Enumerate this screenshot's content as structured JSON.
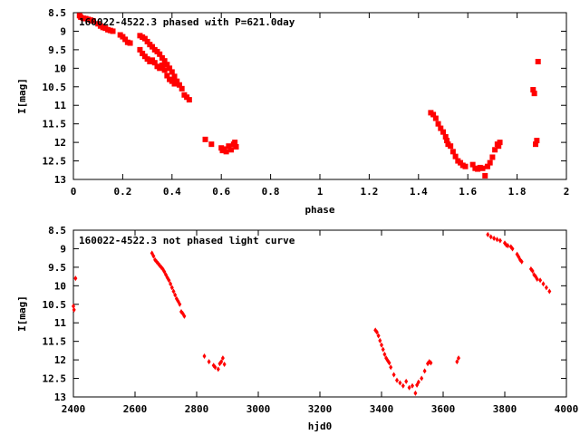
{
  "chart_data": [
    {
      "type": "scatter",
      "title": "160022-4522.3 phased with P=621.0day",
      "xlabel": "phase",
      "ylabel": "I[mag]",
      "xlim": [
        0,
        2
      ],
      "ylim": [
        13,
        8.5
      ],
      "y_reversed": true,
      "xticks": [
        0,
        0.2,
        0.4,
        0.6,
        0.8,
        1,
        1.2,
        1.4,
        1.6,
        1.8,
        2
      ],
      "xtick_labels": [
        "0",
        "0.2",
        "0.4",
        "0.6",
        "0.8",
        "1",
        "1.2",
        "1.4",
        "1.6",
        "1.8",
        "2"
      ],
      "yticks": [
        8.5,
        9,
        9.5,
        10,
        10.5,
        11,
        11.5,
        12,
        12.5,
        13
      ],
      "ytick_labels": [
        "8.5",
        "9",
        "9.5",
        "10",
        "10.5",
        "11",
        "11.5",
        "12",
        "12.5",
        "13"
      ],
      "marker_color": "#ff0000",
      "marker": "square",
      "points": [
        [
          0.025,
          8.58
        ],
        [
          0.03,
          8.62
        ],
        [
          0.04,
          8.65
        ],
        [
          0.05,
          8.66
        ],
        [
          0.06,
          8.68
        ],
        [
          0.07,
          8.7
        ],
        [
          0.08,
          8.72
        ],
        [
          0.1,
          8.8
        ],
        [
          0.11,
          8.86
        ],
        [
          0.12,
          8.9
        ],
        [
          0.13,
          8.92
        ],
        [
          0.14,
          8.96
        ],
        [
          0.15,
          8.98
        ],
        [
          0.16,
          9.0
        ],
        [
          0.19,
          9.1
        ],
        [
          0.2,
          9.15
        ],
        [
          0.21,
          9.22
        ],
        [
          0.22,
          9.3
        ],
        [
          0.23,
          9.32
        ],
        [
          0.27,
          9.12
        ],
        [
          0.28,
          9.16
        ],
        [
          0.29,
          9.2
        ],
        [
          0.3,
          9.28
        ],
        [
          0.31,
          9.36
        ],
        [
          0.32,
          9.42
        ],
        [
          0.33,
          9.5
        ],
        [
          0.34,
          9.55
        ],
        [
          0.35,
          9.62
        ],
        [
          0.36,
          9.72
        ],
        [
          0.37,
          9.8
        ],
        [
          0.38,
          9.9
        ],
        [
          0.39,
          10.0
        ],
        [
          0.4,
          10.1
        ],
        [
          0.41,
          10.22
        ],
        [
          0.42,
          10.35
        ],
        [
          0.43,
          10.45
        ],
        [
          0.44,
          10.55
        ],
        [
          0.45,
          10.72
        ],
        [
          0.46,
          10.78
        ],
        [
          0.47,
          10.85
        ],
        [
          0.27,
          9.5
        ],
        [
          0.28,
          9.6
        ],
        [
          0.29,
          9.68
        ],
        [
          0.3,
          9.75
        ],
        [
          0.31,
          9.82
        ],
        [
          0.32,
          9.78
        ],
        [
          0.33,
          9.85
        ],
        [
          0.34,
          9.95
        ],
        [
          0.35,
          10.0
        ],
        [
          0.36,
          9.92
        ],
        [
          0.37,
          10.05
        ],
        [
          0.38,
          10.2
        ],
        [
          0.39,
          10.3
        ],
        [
          0.4,
          10.35
        ],
        [
          0.41,
          10.42
        ],
        [
          0.535,
          11.92
        ],
        [
          0.56,
          12.05
        ],
        [
          0.6,
          12.15
        ],
        [
          0.605,
          12.22
        ],
        [
          0.61,
          12.18
        ],
        [
          0.62,
          12.25
        ],
        [
          0.63,
          12.1
        ],
        [
          0.64,
          12.2
        ],
        [
          0.65,
          12.05
        ],
        [
          0.655,
          12.0
        ],
        [
          0.66,
          12.12
        ],
        [
          1.45,
          11.2
        ],
        [
          1.46,
          11.25
        ],
        [
          1.47,
          11.35
        ],
        [
          1.48,
          11.5
        ],
        [
          1.49,
          11.62
        ],
        [
          1.5,
          11.72
        ],
        [
          1.51,
          11.85
        ],
        [
          1.515,
          11.95
        ],
        [
          1.52,
          12.05
        ],
        [
          1.53,
          12.1
        ],
        [
          1.54,
          12.25
        ],
        [
          1.55,
          12.38
        ],
        [
          1.56,
          12.5
        ],
        [
          1.57,
          12.55
        ],
        [
          1.58,
          12.62
        ],
        [
          1.59,
          12.65
        ],
        [
          1.62,
          12.6
        ],
        [
          1.63,
          12.7
        ],
        [
          1.64,
          12.72
        ],
        [
          1.65,
          12.68
        ],
        [
          1.66,
          12.7
        ],
        [
          1.67,
          12.9
        ],
        [
          1.68,
          12.65
        ],
        [
          1.69,
          12.55
        ],
        [
          1.7,
          12.4
        ],
        [
          1.71,
          12.2
        ],
        [
          1.72,
          12.05
        ],
        [
          1.725,
          12.1
        ],
        [
          1.73,
          12.0
        ],
        [
          1.865,
          10.58
        ],
        [
          1.87,
          10.68
        ],
        [
          1.875,
          12.05
        ],
        [
          1.88,
          11.95
        ],
        [
          1.885,
          9.82
        ]
      ]
    },
    {
      "type": "scatter",
      "title": "160022-4522.3 not phased light curve",
      "xlabel": "hjd0",
      "ylabel": "I[mag]",
      "xlim": [
        2400,
        4000
      ],
      "ylim": [
        13,
        8.5
      ],
      "y_reversed": true,
      "xticks": [
        2400,
        2600,
        2800,
        3000,
        3200,
        3400,
        3600,
        3800,
        4000
      ],
      "xtick_labels": [
        "2400",
        "2600",
        "2800",
        "3000",
        "3200",
        "3400",
        "3600",
        "3800",
        "4000"
      ],
      "yticks": [
        8.5,
        9,
        9.5,
        10,
        10.5,
        11,
        11.5,
        12,
        12.5,
        13
      ],
      "ytick_labels": [
        "8.5",
        "9",
        "9.5",
        "10",
        "10.5",
        "11",
        "11.5",
        "12",
        "12.5",
        "13"
      ],
      "marker_color": "#ff0000",
      "marker": "diamond",
      "points": [
        [
          2400,
          10.55
        ],
        [
          2402,
          10.65
        ],
        [
          2407,
          9.8
        ],
        [
          2655,
          9.12
        ],
        [
          2660,
          9.2
        ],
        [
          2665,
          9.3
        ],
        [
          2670,
          9.35
        ],
        [
          2675,
          9.4
        ],
        [
          2680,
          9.45
        ],
        [
          2685,
          9.5
        ],
        [
          2690,
          9.55
        ],
        [
          2695,
          9.62
        ],
        [
          2700,
          9.7
        ],
        [
          2705,
          9.78
        ],
        [
          2710,
          9.85
        ],
        [
          2715,
          9.95
        ],
        [
          2720,
          10.05
        ],
        [
          2725,
          10.15
        ],
        [
          2730,
          10.25
        ],
        [
          2735,
          10.35
        ],
        [
          2740,
          10.42
        ],
        [
          2745,
          10.5
        ],
        [
          2750,
          10.7
        ],
        [
          2755,
          10.75
        ],
        [
          2760,
          10.82
        ],
        [
          2825,
          11.9
        ],
        [
          2840,
          12.05
        ],
        [
          2855,
          12.15
        ],
        [
          2860,
          12.2
        ],
        [
          2870,
          12.25
        ],
        [
          2875,
          12.1
        ],
        [
          2880,
          12.05
        ],
        [
          2885,
          11.95
        ],
        [
          2890,
          12.12
        ],
        [
          3380,
          11.2
        ],
        [
          3385,
          11.25
        ],
        [
          3390,
          11.35
        ],
        [
          3395,
          11.48
        ],
        [
          3400,
          11.6
        ],
        [
          3405,
          11.72
        ],
        [
          3410,
          11.85
        ],
        [
          3415,
          11.95
        ],
        [
          3420,
          12.02
        ],
        [
          3425,
          12.08
        ],
        [
          3430,
          12.2
        ],
        [
          3440,
          12.4
        ],
        [
          3450,
          12.55
        ],
        [
          3460,
          12.62
        ],
        [
          3470,
          12.7
        ],
        [
          3480,
          12.58
        ],
        [
          3490,
          12.75
        ],
        [
          3500,
          12.7
        ],
        [
          3510,
          12.9
        ],
        [
          3515,
          12.68
        ],
        [
          3520,
          12.6
        ],
        [
          3530,
          12.5
        ],
        [
          3540,
          12.3
        ],
        [
          3550,
          12.1
        ],
        [
          3555,
          12.05
        ],
        [
          3560,
          12.08
        ],
        [
          3645,
          12.05
        ],
        [
          3650,
          11.95
        ],
        [
          3745,
          8.62
        ],
        [
          3755,
          8.68
        ],
        [
          3765,
          8.72
        ],
        [
          3775,
          8.75
        ],
        [
          3785,
          8.78
        ],
        [
          3800,
          8.85
        ],
        [
          3805,
          8.9
        ],
        [
          3810,
          8.92
        ],
        [
          3820,
          8.95
        ],
        [
          3825,
          9.0
        ],
        [
          3840,
          9.15
        ],
        [
          3845,
          9.22
        ],
        [
          3850,
          9.3
        ],
        [
          3855,
          9.35
        ],
        [
          3885,
          9.55
        ],
        [
          3890,
          9.6
        ],
        [
          3895,
          9.7
        ],
        [
          3900,
          9.75
        ],
        [
          3905,
          9.82
        ],
        [
          3915,
          9.85
        ],
        [
          3925,
          9.95
        ],
        [
          3935,
          10.05
        ],
        [
          3945,
          10.15
        ]
      ]
    }
  ]
}
